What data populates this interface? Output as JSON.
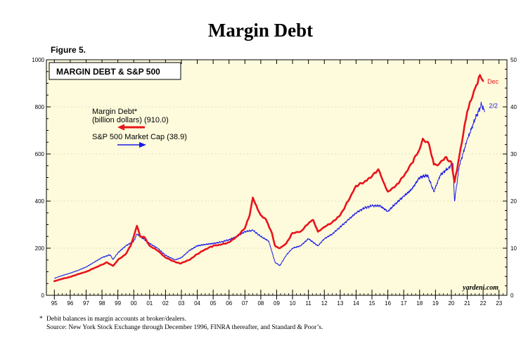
{
  "page": {
    "title": "Margin Debt",
    "figure_label": "Figure 5.",
    "footnote": "Debit balances in margin accounts at broker/dealers.",
    "footnote_marker": "*",
    "source": "Source: New York Stock Exchange through December 1996, FINRA thereafter, and Standard & Poor’s."
  },
  "chart_data": {
    "type": "line",
    "title": "MARGIN DEBT & S&P 500",
    "watermark": "yardeni.com",
    "xlim": [
      1994.5,
      2023.5
    ],
    "x_tick_labels": [
      "95",
      "96",
      "97",
      "98",
      "99",
      "00",
      "01",
      "02",
      "03",
      "04",
      "05",
      "06",
      "07",
      "08",
      "09",
      "10",
      "11",
      "12",
      "13",
      "14",
      "15",
      "16",
      "17",
      "18",
      "19",
      "20",
      "21",
      "22",
      "23"
    ],
    "left_axis": {
      "ylim": [
        0,
        1000
      ],
      "ticks": [
        "0",
        "200",
        "400",
        "600",
        "800",
        "1000"
      ]
    },
    "right_axis": {
      "ylim": [
        0,
        50
      ],
      "ticks": [
        "0",
        "10",
        "20",
        "30",
        "40",
        "50"
      ]
    },
    "colors": {
      "margin": "#e8141b",
      "sp500": "#1a1ae6",
      "background": "#fefbdc"
    },
    "series": [
      {
        "name": "Margin Debt",
        "legend_lines": [
          "Margin Debt*",
          "(billion dollars) (910.0)"
        ],
        "axis": "left",
        "end_label": "Dec",
        "points": [
          [
            1995.0,
            60
          ],
          [
            1995.5,
            70
          ],
          [
            1996.0,
            78
          ],
          [
            1996.5,
            90
          ],
          [
            1997.0,
            100
          ],
          [
            1997.5,
            115
          ],
          [
            1998.0,
            130
          ],
          [
            1998.3,
            140
          ],
          [
            1998.7,
            125
          ],
          [
            1999.0,
            150
          ],
          [
            1999.5,
            175
          ],
          [
            1999.8,
            210
          ],
          [
            2000.0,
            250
          ],
          [
            2000.2,
            295
          ],
          [
            2000.4,
            250
          ],
          [
            2000.7,
            245
          ],
          [
            2001.0,
            210
          ],
          [
            2001.5,
            190
          ],
          [
            2002.0,
            160
          ],
          [
            2002.5,
            145
          ],
          [
            2002.9,
            135
          ],
          [
            2003.5,
            150
          ],
          [
            2004.0,
            175
          ],
          [
            2004.5,
            195
          ],
          [
            2005.0,
            210
          ],
          [
            2005.5,
            215
          ],
          [
            2006.0,
            225
          ],
          [
            2006.5,
            250
          ],
          [
            2007.0,
            285
          ],
          [
            2007.3,
            340
          ],
          [
            2007.5,
            415
          ],
          [
            2007.8,
            365
          ],
          [
            2008.0,
            340
          ],
          [
            2008.3,
            325
          ],
          [
            2008.7,
            265
          ],
          [
            2008.9,
            210
          ],
          [
            2009.2,
            200
          ],
          [
            2009.6,
            220
          ],
          [
            2010.0,
            265
          ],
          [
            2010.5,
            270
          ],
          [
            2011.0,
            305
          ],
          [
            2011.3,
            320
          ],
          [
            2011.6,
            270
          ],
          [
            2012.0,
            290
          ],
          [
            2012.5,
            310
          ],
          [
            2013.0,
            340
          ],
          [
            2013.5,
            400
          ],
          [
            2014.0,
            465
          ],
          [
            2014.5,
            480
          ],
          [
            2015.0,
            505
          ],
          [
            2015.4,
            535
          ],
          [
            2015.8,
            470
          ],
          [
            2016.0,
            440
          ],
          [
            2016.5,
            465
          ],
          [
            2017.0,
            505
          ],
          [
            2017.5,
            560
          ],
          [
            2018.0,
            620
          ],
          [
            2018.2,
            665
          ],
          [
            2018.6,
            640
          ],
          [
            2018.9,
            555
          ],
          [
            2019.2,
            555
          ],
          [
            2019.6,
            585
          ],
          [
            2020.0,
            565
          ],
          [
            2020.2,
            480
          ],
          [
            2020.5,
            590
          ],
          [
            2021.0,
            780
          ],
          [
            2021.5,
            880
          ],
          [
            2021.8,
            935
          ],
          [
            2022.0,
            910
          ]
        ]
      },
      {
        "name": "S&P 500 Market Cap",
        "legend_label": "S&P 500 Market Cap (38.9)",
        "axis": "right",
        "end_label": "2/2",
        "points": [
          [
            1995.0,
            3.6
          ],
          [
            1995.5,
            4.2
          ],
          [
            1996.0,
            4.7
          ],
          [
            1996.5,
            5.3
          ],
          [
            1997.0,
            6.0
          ],
          [
            1997.5,
            7.0
          ],
          [
            1998.0,
            8.0
          ],
          [
            1998.5,
            8.6
          ],
          [
            1998.7,
            7.6
          ],
          [
            1999.0,
            9.0
          ],
          [
            1999.5,
            10.5
          ],
          [
            2000.0,
            11.5
          ],
          [
            2000.2,
            13.0
          ],
          [
            2000.6,
            12.0
          ],
          [
            2001.0,
            11.0
          ],
          [
            2001.5,
            10.0
          ],
          [
            2002.0,
            8.5
          ],
          [
            2002.6,
            7.5
          ],
          [
            2003.0,
            8.0
          ],
          [
            2003.5,
            9.5
          ],
          [
            2004.0,
            10.5
          ],
          [
            2004.5,
            10.8
          ],
          [
            2005.0,
            11.0
          ],
          [
            2005.5,
            11.3
          ],
          [
            2006.0,
            11.8
          ],
          [
            2006.5,
            12.5
          ],
          [
            2007.0,
            13.5
          ],
          [
            2007.5,
            13.8
          ],
          [
            2008.0,
            12.5
          ],
          [
            2008.5,
            11.5
          ],
          [
            2008.9,
            7.0
          ],
          [
            2009.2,
            6.3
          ],
          [
            2009.6,
            8.5
          ],
          [
            2010.0,
            10.0
          ],
          [
            2010.5,
            10.5
          ],
          [
            2011.0,
            12.0
          ],
          [
            2011.6,
            10.5
          ],
          [
            2012.0,
            12.0
          ],
          [
            2012.5,
            13.0
          ],
          [
            2013.0,
            14.5
          ],
          [
            2013.5,
            16.0
          ],
          [
            2014.0,
            17.5
          ],
          [
            2014.5,
            18.5
          ],
          [
            2015.0,
            19.0
          ],
          [
            2015.5,
            19.0
          ],
          [
            2016.0,
            17.8
          ],
          [
            2016.5,
            19.5
          ],
          [
            2017.0,
            21.0
          ],
          [
            2017.5,
            22.5
          ],
          [
            2018.0,
            25.0
          ],
          [
            2018.5,
            25.5
          ],
          [
            2018.9,
            22.0
          ],
          [
            2019.3,
            25.5
          ],
          [
            2019.8,
            27.0
          ],
          [
            2020.1,
            28.0
          ],
          [
            2020.2,
            20.0
          ],
          [
            2020.5,
            27.5
          ],
          [
            2021.0,
            33.0
          ],
          [
            2021.5,
            37.5
          ],
          [
            2021.9,
            40.5
          ],
          [
            2022.1,
            38.9
          ]
        ]
      }
    ]
  }
}
